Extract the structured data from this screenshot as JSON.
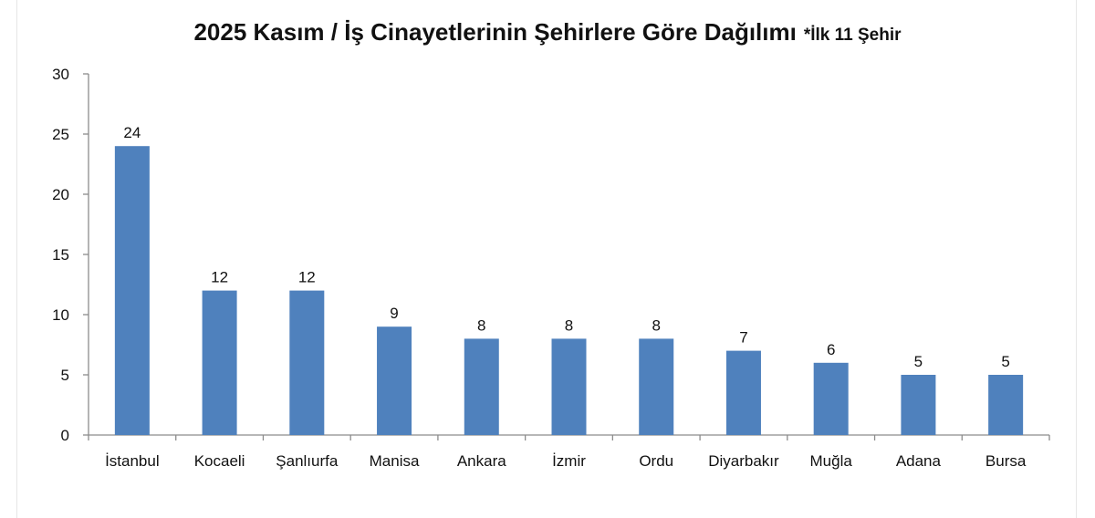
{
  "chart_data": {
    "type": "bar",
    "title": "2025 Kasım / İş Cinayetlerinin Şehirlere Göre Dağılımı",
    "subtitle": "*İlk 11 Şehir",
    "xlabel": "",
    "ylabel": "",
    "categories": [
      "İstanbul",
      "Kocaeli",
      "Şanlıurfa",
      "Manisa",
      "Ankara",
      "İzmir",
      "Ordu",
      "Diyarbakır",
      "Muğla",
      "Adana",
      "Bursa"
    ],
    "values": [
      24,
      12,
      12,
      9,
      8,
      8,
      8,
      7,
      6,
      5,
      5
    ],
    "ylim": [
      0,
      30
    ],
    "yticks": [
      0,
      5,
      10,
      15,
      20,
      25,
      30
    ],
    "grid": false,
    "legend": "none",
    "bar_color": "#4f81bd",
    "axis_color": "#8c8c8c"
  }
}
